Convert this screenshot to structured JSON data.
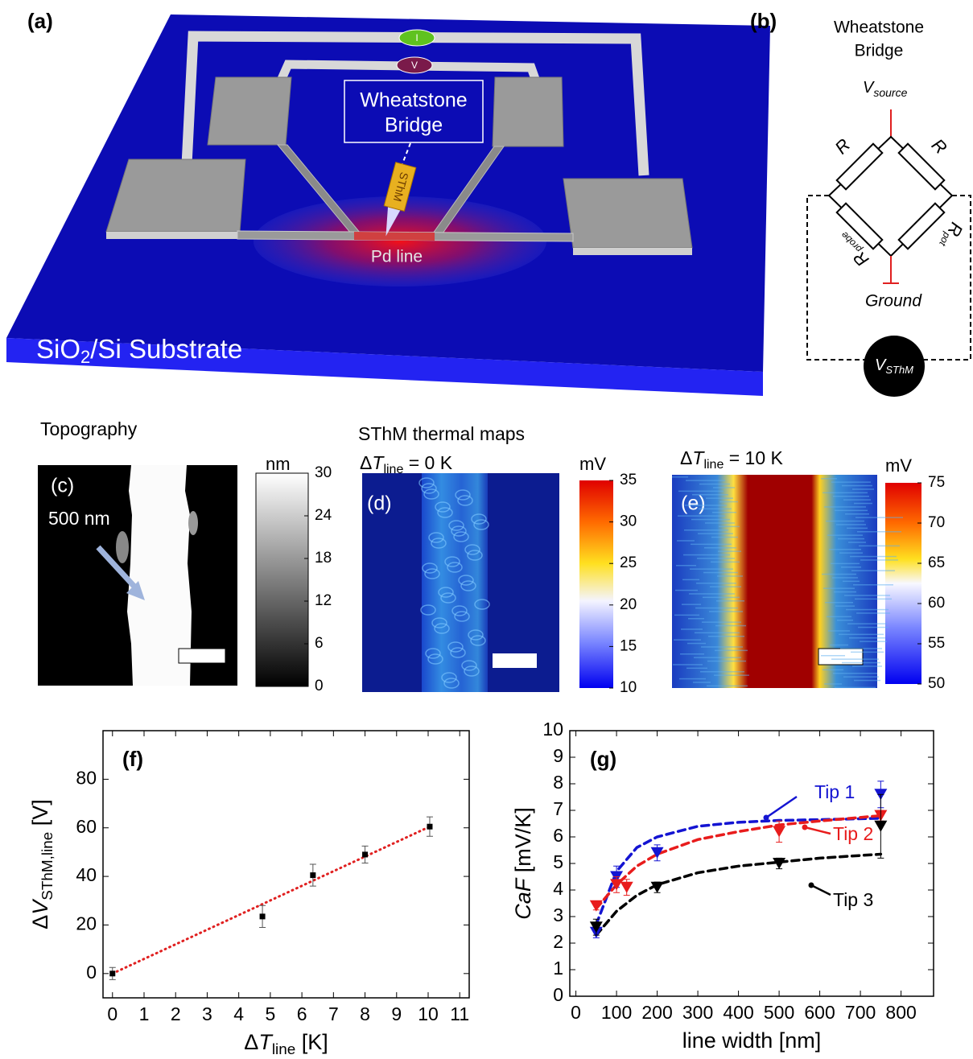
{
  "panel_a": {
    "label": "(a)",
    "bridge_title": [
      "Wheatstone",
      "Bridge"
    ],
    "probe": "SThM",
    "current": "I",
    "voltage": "V",
    "line": "Pd line",
    "substrate": [
      "SiO",
      "2",
      "/Si Substrate"
    ]
  },
  "panel_b": {
    "label": "(b)",
    "title": [
      "Wheatstone",
      "Bridge"
    ],
    "source": [
      "V",
      "source"
    ],
    "resistors": [
      [
        "R"
      ],
      [
        "R"
      ],
      [
        "R",
        "probe"
      ],
      [
        "R",
        "pot"
      ]
    ],
    "ground": "Ground",
    "meter": [
      "V",
      "SThM"
    ]
  },
  "maps": [
    {
      "title": "Topography",
      "label": "(c)",
      "annotation": "500 nm",
      "unit": "nm",
      "clim": [
        0,
        30
      ],
      "cticks": [
        0,
        6,
        12,
        18,
        24,
        30
      ]
    },
    {
      "title": "SThM thermal maps",
      "condition": [
        "Δ",
        "T",
        "line",
        " = 0 K"
      ],
      "label": "(d)",
      "unit": "mV",
      "clim": [
        10,
        35
      ],
      "cticks": [
        10,
        15,
        20,
        25,
        30,
        35
      ]
    },
    {
      "condition": [
        "Δ",
        "T",
        "line",
        " = 10 K"
      ],
      "label": "(e)",
      "unit": "mV",
      "clim": [
        50,
        75
      ],
      "cticks": [
        50,
        55,
        60,
        65,
        70,
        75
      ]
    }
  ],
  "chart_data": [
    {
      "type": "scatter",
      "label": "(f)",
      "xlabel": [
        "Δ",
        "T",
        "line",
        " [K]"
      ],
      "ylabel": [
        "Δ",
        "V",
        "SThM,line",
        " [V]"
      ],
      "x": [
        0,
        4.75,
        6.35,
        8.0,
        10.05
      ],
      "series": [
        {
          "color": "#000000",
          "values": [
            0,
            23.5,
            40.5,
            49,
            60.5
          ],
          "errors": [
            2.5,
            4.5,
            4.5,
            3.5,
            4
          ]
        }
      ],
      "fits": [
        {
          "color": "#e02020",
          "x": [
            0,
            10.05
          ],
          "values": [
            0,
            60.5
          ]
        }
      ],
      "xlim": [
        -0.3,
        11.3
      ],
      "ylim": [
        -10,
        100
      ],
      "xticks": [
        0,
        1,
        2,
        3,
        4,
        5,
        6,
        7,
        8,
        9,
        10,
        11
      ],
      "yticks": [
        0,
        20,
        40,
        60,
        80
      ]
    },
    {
      "type": "scatter",
      "label": "(g)",
      "xlabel": [
        "line width [nm]"
      ],
      "ylabel": [
        "CaF",
        " [mV/K]"
      ],
      "series": [
        {
          "name": "Tip 1",
          "color": "#1414d2",
          "x": [
            50,
            100,
            200,
            750
          ],
          "values": [
            2.4,
            4.5,
            5.4,
            7.6
          ],
          "errors": [
            0.2,
            0.4,
            0.3,
            0.5
          ]
        },
        {
          "name": "Tip 2",
          "color": "#e81c1c",
          "x": [
            50,
            100,
            125,
            500,
            750
          ],
          "values": [
            3.4,
            4.2,
            4.1,
            6.2,
            6.8
          ],
          "errors": [
            0.15,
            0.3,
            0.3,
            0.4,
            0.2
          ]
        },
        {
          "name": "Tip 3",
          "color": "#000000",
          "x": [
            50,
            200,
            500,
            750
          ],
          "values": [
            2.6,
            4.1,
            5.0,
            6.4
          ],
          "errors": [
            0.3,
            0.2,
            0.2,
            1.2
          ]
        }
      ],
      "fits": [
        {
          "color": "#1414d2",
          "x": [
            50,
            100,
            150,
            200,
            300,
            400,
            500,
            600,
            750
          ],
          "values": [
            2.7,
            4.7,
            5.6,
            6.0,
            6.4,
            6.55,
            6.62,
            6.65,
            6.7
          ]
        },
        {
          "color": "#e81c1c",
          "x": [
            50,
            100,
            150,
            200,
            300,
            400,
            500,
            600,
            750
          ],
          "values": [
            3.3,
            4.2,
            4.9,
            5.35,
            5.9,
            6.2,
            6.45,
            6.6,
            6.8
          ]
        },
        {
          "color": "#000000",
          "x": [
            50,
            100,
            150,
            200,
            300,
            400,
            500,
            600,
            750
          ],
          "values": [
            2.3,
            3.2,
            3.8,
            4.2,
            4.65,
            4.9,
            5.05,
            5.2,
            5.35
          ]
        }
      ],
      "xlim": [
        -15,
        880
      ],
      "ylim": [
        0,
        10
      ],
      "xticks": [
        0,
        100,
        200,
        300,
        400,
        500,
        600,
        700,
        800
      ],
      "yticks": [
        0,
        1,
        2,
        3,
        4,
        5,
        6,
        7,
        8,
        9,
        10
      ]
    }
  ]
}
